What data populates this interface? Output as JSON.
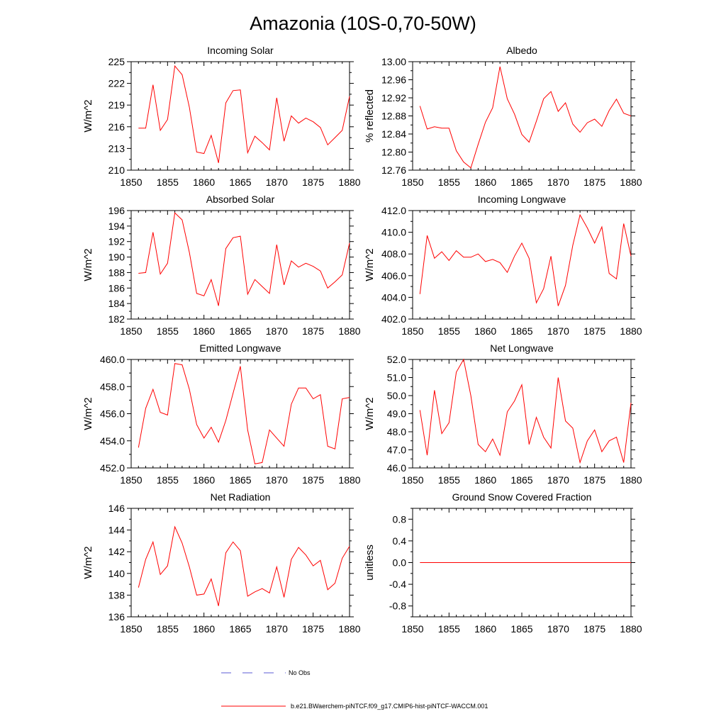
{
  "figure": {
    "title": "Amazonia (10S-0,70-50W)",
    "legend": {
      "obs_label": "No Obs",
      "model_label": "b.e21.BWaerchem-piNTCF.f09_g17.CMIP6-hist-piNTCF-WACCM.001",
      "obs_color": "#5b5bd6",
      "model_color": "#ff0000"
    }
  },
  "chart_data": [
    {
      "type": "line",
      "title": "Incoming Solar",
      "xlabel": "",
      "ylabel": "W/m^2",
      "xlim": [
        1850,
        1880
      ],
      "ylim": [
        210,
        225
      ],
      "xticks": [
        1850,
        1855,
        1860,
        1865,
        1870,
        1875,
        1880
      ],
      "yticks": [
        210,
        213,
        216,
        219,
        222,
        225
      ],
      "ytick_labels": [
        "210",
        "213",
        "216",
        "219",
        "222",
        "225"
      ],
      "x": [
        1851,
        1852,
        1853,
        1854,
        1855,
        1856,
        1857,
        1858,
        1859,
        1860,
        1861,
        1862,
        1863,
        1864,
        1865,
        1866,
        1867,
        1868,
        1869,
        1870,
        1871,
        1872,
        1873,
        1874,
        1875,
        1876,
        1877,
        1878,
        1879,
        1880
      ],
      "series": [
        {
          "values": [
            215.8,
            215.8,
            221.8,
            215.5,
            217.0,
            224.4,
            223.2,
            218.7,
            212.5,
            212.3,
            214.8,
            211.0,
            219.3,
            221.0,
            221.1,
            212.4,
            214.7,
            213.8,
            212.8,
            220.0,
            214.0,
            217.5,
            216.5,
            217.2,
            216.7,
            215.9,
            213.5,
            214.5,
            215.5,
            220.2
          ]
        }
      ]
    },
    {
      "type": "line",
      "title": "Albedo",
      "xlabel": "",
      "ylabel": "% reflected",
      "xlim": [
        1850,
        1880
      ],
      "ylim": [
        12.76,
        13.0
      ],
      "xticks": [
        1850,
        1855,
        1860,
        1865,
        1870,
        1875,
        1880
      ],
      "yticks": [
        12.76,
        12.8,
        12.84,
        12.88,
        12.92,
        12.96,
        13.0
      ],
      "ytick_labels": [
        "12.76",
        "12.80",
        "12.84",
        "12.88",
        "12.92",
        "12.96",
        "13.00"
      ],
      "x": [
        1851,
        1852,
        1853,
        1854,
        1855,
        1856,
        1857,
        1858,
        1859,
        1860,
        1861,
        1862,
        1863,
        1864,
        1865,
        1866,
        1867,
        1868,
        1869,
        1870,
        1871,
        1872,
        1873,
        1874,
        1875,
        1876,
        1877,
        1878,
        1879,
        1880
      ],
      "series": [
        {
          "values": [
            12.902,
            12.851,
            12.856,
            12.853,
            12.853,
            12.803,
            12.778,
            12.765,
            12.817,
            12.866,
            12.898,
            12.989,
            12.918,
            12.884,
            12.839,
            12.822,
            12.868,
            12.918,
            12.934,
            12.89,
            12.909,
            12.862,
            12.844,
            12.865,
            12.873,
            12.857,
            12.892,
            12.917,
            12.886,
            12.88
          ]
        }
      ]
    },
    {
      "type": "line",
      "title": "Absorbed Solar",
      "xlabel": "",
      "ylabel": "W/m^2",
      "xlim": [
        1850,
        1880
      ],
      "ylim": [
        182,
        196
      ],
      "xticks": [
        1850,
        1855,
        1860,
        1865,
        1870,
        1875,
        1880
      ],
      "yticks": [
        182,
        184,
        186,
        188,
        190,
        192,
        194,
        196
      ],
      "ytick_labels": [
        "182",
        "184",
        "186",
        "188",
        "190",
        "192",
        "194",
        "196"
      ],
      "x": [
        1851,
        1852,
        1853,
        1854,
        1855,
        1856,
        1857,
        1858,
        1859,
        1860,
        1861,
        1862,
        1863,
        1864,
        1865,
        1866,
        1867,
        1868,
        1869,
        1870,
        1871,
        1872,
        1873,
        1874,
        1875,
        1876,
        1877,
        1878,
        1879,
        1880
      ],
      "series": [
        {
          "values": [
            187.9,
            188.0,
            193.2,
            187.8,
            189.2,
            195.7,
            194.8,
            190.6,
            185.3,
            185.0,
            187.1,
            183.7,
            191.1,
            192.5,
            192.7,
            185.2,
            187.1,
            186.2,
            185.3,
            191.6,
            186.4,
            189.5,
            188.7,
            189.2,
            188.8,
            188.2,
            186.0,
            186.8,
            187.7,
            191.8
          ]
        }
      ]
    },
    {
      "type": "line",
      "title": "Incoming Longwave",
      "xlabel": "",
      "ylabel": "W/m^2",
      "xlim": [
        1850,
        1880
      ],
      "ylim": [
        402,
        412
      ],
      "xticks": [
        1850,
        1855,
        1860,
        1865,
        1870,
        1875,
        1880
      ],
      "yticks": [
        402,
        404,
        406,
        408,
        410,
        412
      ],
      "ytick_labels": [
        "402.0",
        "404.0",
        "406.0",
        "408.0",
        "410.0",
        "412.0"
      ],
      "x": [
        1851,
        1852,
        1853,
        1854,
        1855,
        1856,
        1857,
        1858,
        1859,
        1860,
        1861,
        1862,
        1863,
        1864,
        1865,
        1866,
        1867,
        1868,
        1869,
        1870,
        1871,
        1872,
        1873,
        1874,
        1875,
        1876,
        1877,
        1878,
        1879,
        1880
      ],
      "series": [
        {
          "values": [
            404.3,
            409.7,
            407.6,
            408.2,
            407.4,
            408.3,
            407.7,
            407.7,
            408.0,
            407.3,
            407.5,
            407.2,
            406.3,
            407.8,
            409.0,
            407.6,
            403.5,
            404.8,
            407.8,
            403.2,
            405.1,
            408.8,
            411.6,
            410.4,
            409.0,
            410.5,
            406.2,
            405.7,
            410.8,
            407.8
          ]
        }
      ]
    },
    {
      "type": "line",
      "title": "Emitted Longwave",
      "xlabel": "",
      "ylabel": "W/m^2",
      "xlim": [
        1850,
        1880
      ],
      "ylim": [
        452,
        460
      ],
      "xticks": [
        1850,
        1855,
        1860,
        1865,
        1870,
        1875,
        1880
      ],
      "yticks": [
        452,
        454,
        456,
        458,
        460
      ],
      "ytick_labels": [
        "452.0",
        "454.0",
        "456.0",
        "458.0",
        "460.0"
      ],
      "x": [
        1851,
        1852,
        1853,
        1854,
        1855,
        1856,
        1857,
        1858,
        1859,
        1860,
        1861,
        1862,
        1863,
        1864,
        1865,
        1866,
        1867,
        1868,
        1869,
        1870,
        1871,
        1872,
        1873,
        1874,
        1875,
        1876,
        1877,
        1878,
        1879,
        1880
      ],
      "series": [
        {
          "values": [
            453.5,
            456.4,
            457.8,
            456.1,
            455.9,
            459.7,
            459.6,
            457.8,
            455.2,
            454.2,
            455.0,
            453.9,
            455.5,
            457.5,
            459.5,
            454.8,
            452.3,
            452.4,
            454.8,
            454.2,
            453.6,
            456.7,
            457.9,
            457.9,
            457.1,
            457.4,
            453.6,
            453.4,
            457.1,
            457.2
          ]
        }
      ]
    },
    {
      "type": "line",
      "title": "Net Longwave",
      "xlabel": "",
      "ylabel": "W/m^2",
      "xlim": [
        1850,
        1880
      ],
      "ylim": [
        46,
        52
      ],
      "xticks": [
        1850,
        1855,
        1860,
        1865,
        1870,
        1875,
        1880
      ],
      "yticks": [
        46,
        47,
        48,
        49,
        50,
        51,
        52
      ],
      "ytick_labels": [
        "46.0",
        "47.0",
        "48.0",
        "49.0",
        "50.0",
        "51.0",
        "52.0"
      ],
      "x": [
        1851,
        1852,
        1853,
        1854,
        1855,
        1856,
        1857,
        1858,
        1859,
        1860,
        1861,
        1862,
        1863,
        1864,
        1865,
        1866,
        1867,
        1868,
        1869,
        1870,
        1871,
        1872,
        1873,
        1874,
        1875,
        1876,
        1877,
        1878,
        1879,
        1880
      ],
      "series": [
        {
          "values": [
            49.2,
            46.7,
            50.3,
            47.9,
            48.5,
            51.3,
            52.0,
            50.0,
            47.3,
            46.9,
            47.6,
            46.7,
            49.1,
            49.7,
            50.6,
            47.3,
            48.8,
            47.7,
            47.1,
            51.0,
            48.6,
            48.2,
            46.3,
            47.5,
            48.1,
            46.9,
            47.5,
            47.7,
            46.3,
            49.6
          ]
        }
      ]
    },
    {
      "type": "line",
      "title": "Net Radiation",
      "xlabel": "",
      "ylabel": "W/m^2",
      "xlim": [
        1850,
        1880
      ],
      "ylim": [
        136,
        146
      ],
      "xticks": [
        1850,
        1855,
        1860,
        1865,
        1870,
        1875,
        1880
      ],
      "yticks": [
        136,
        138,
        140,
        142,
        144,
        146
      ],
      "ytick_labels": [
        "136",
        "138",
        "140",
        "142",
        "144",
        "146"
      ],
      "x": [
        1851,
        1852,
        1853,
        1854,
        1855,
        1856,
        1857,
        1858,
        1859,
        1860,
        1861,
        1862,
        1863,
        1864,
        1865,
        1866,
        1867,
        1868,
        1869,
        1870,
        1871,
        1872,
        1873,
        1874,
        1875,
        1876,
        1877,
        1878,
        1879,
        1880
      ],
      "series": [
        {
          "values": [
            138.7,
            141.3,
            142.9,
            139.9,
            140.7,
            144.3,
            142.8,
            140.6,
            138.0,
            138.1,
            139.5,
            137.0,
            141.9,
            142.9,
            142.1,
            137.9,
            138.3,
            138.6,
            138.2,
            140.6,
            137.8,
            141.3,
            142.4,
            141.7,
            140.7,
            141.2,
            138.5,
            139.1,
            141.4,
            142.5
          ]
        }
      ]
    },
    {
      "type": "line",
      "title": "Ground Snow Covered Fraction",
      "xlabel": "",
      "ylabel": "unitless",
      "xlim": [
        1850,
        1880
      ],
      "ylim": [
        -1.0,
        1.0
      ],
      "xticks": [
        1850,
        1855,
        1860,
        1865,
        1870,
        1875,
        1880
      ],
      "yticks": [
        -0.8,
        -0.4,
        0.0,
        0.4,
        0.8
      ],
      "ytick_labels": [
        "-0.8",
        "-0.4",
        "0.0",
        "0.4",
        "0.8"
      ],
      "x": [
        1851,
        1852,
        1853,
        1854,
        1855,
        1856,
        1857,
        1858,
        1859,
        1860,
        1861,
        1862,
        1863,
        1864,
        1865,
        1866,
        1867,
        1868,
        1869,
        1870,
        1871,
        1872,
        1873,
        1874,
        1875,
        1876,
        1877,
        1878,
        1879,
        1880
      ],
      "series": [
        {
          "values": [
            0,
            0,
            0,
            0,
            0,
            0,
            0,
            0,
            0,
            0,
            0,
            0,
            0,
            0,
            0,
            0,
            0,
            0,
            0,
            0,
            0,
            0,
            0,
            0,
            0,
            0,
            0,
            0,
            0,
            0
          ]
        }
      ]
    }
  ]
}
